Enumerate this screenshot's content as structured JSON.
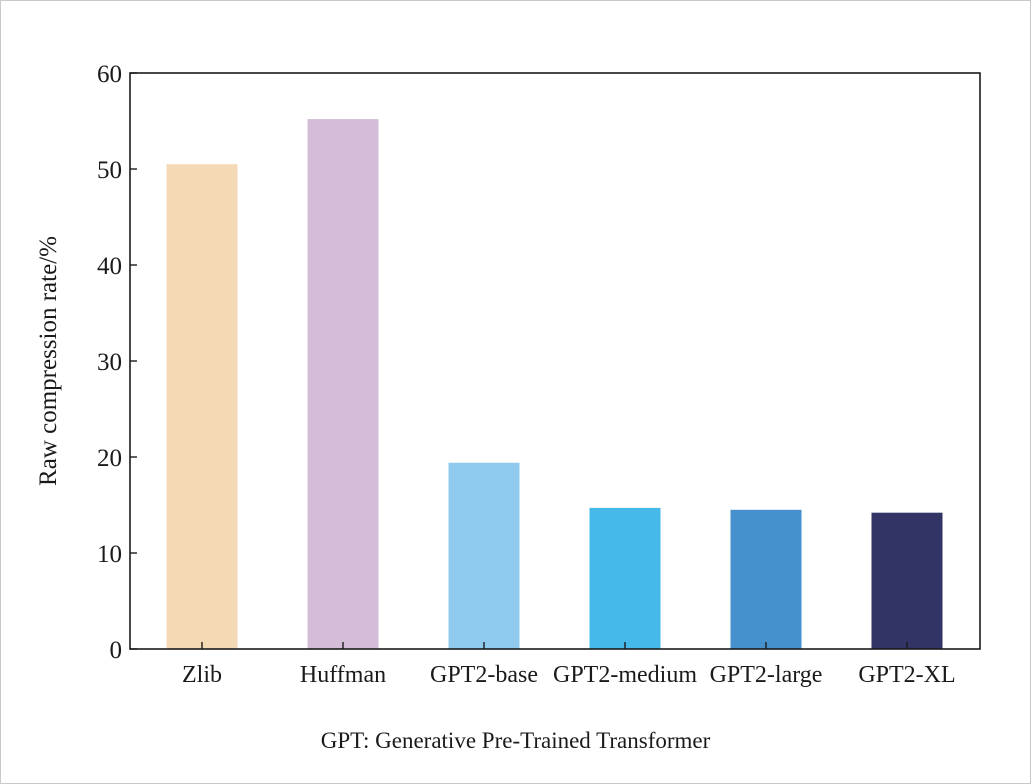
{
  "chart_data": {
    "type": "bar",
    "categories": [
      "Zlib",
      "Huffman",
      "GPT2-base",
      "GPT2-medium",
      "GPT2-large",
      "GPT2-XL"
    ],
    "values": [
      50.5,
      55.2,
      19.4,
      14.7,
      14.5,
      14.2
    ],
    "colors": [
      "#f4d9b5",
      "#d4bdd8",
      "#8fcbef",
      "#44b9ea",
      "#4590cd",
      "#333466"
    ],
    "xlabel": "",
    "ylabel": "Raw compression rate/%",
    "ylim": [
      0,
      60
    ],
    "yticks": [
      0,
      10,
      20,
      30,
      40,
      50,
      60
    ],
    "ytick_labels": [
      "0",
      "10",
      "20",
      "30",
      "40",
      "50",
      "60"
    ],
    "grid": false,
    "legend": "none"
  },
  "caption": "GPT: Generative Pre-Trained Transformer"
}
